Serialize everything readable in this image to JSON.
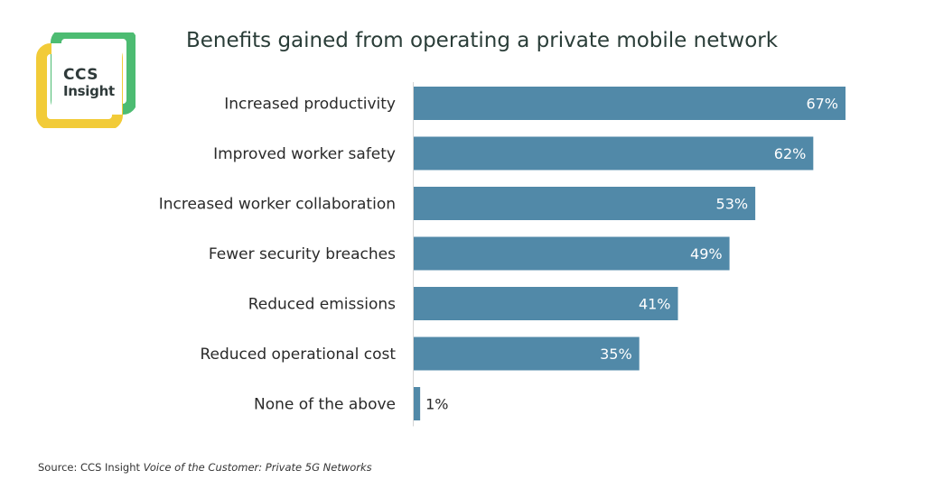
{
  "logo": {
    "line1": "CCS",
    "line2": "Insight"
  },
  "colors": {
    "bar": "#5189a8",
    "logo_green": "#4dbc72",
    "logo_yellow": "#f2cb38",
    "label_inside": "#ffffff",
    "label_outside": "#2a2a2a"
  },
  "source": {
    "prefix": "Source:  CCS Insight ",
    "italic": "Voice of the Customer: Private 5G Networks"
  },
  "chart_data": {
    "type": "bar",
    "orientation": "horizontal",
    "title": "Benefits gained from operating a private mobile network",
    "categories": [
      "Increased productivity",
      "Improved worker safety",
      "Increased worker collaboration",
      "Fewer security breaches",
      "Reduced emissions",
      "Reduced operational cost",
      "None of the above"
    ],
    "values": [
      67,
      62,
      53,
      49,
      41,
      35,
      1
    ],
    "value_labels": [
      "67%",
      "62%",
      "53%",
      "49%",
      "41%",
      "35%",
      "1%"
    ],
    "xlim": [
      0,
      67
    ],
    "grid": false,
    "legend": "none"
  }
}
